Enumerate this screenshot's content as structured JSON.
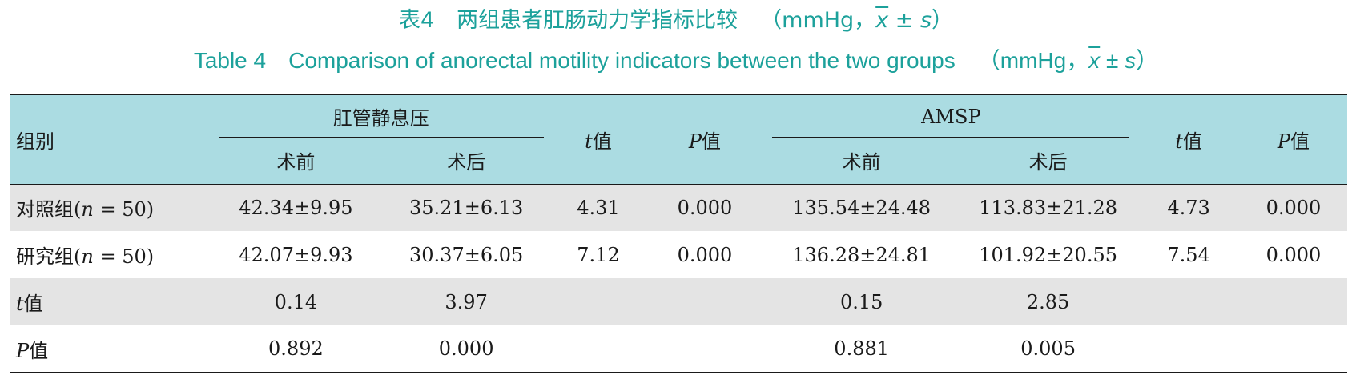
{
  "title": {
    "cn_label": "表4",
    "cn_text": "两组患者肛肠动力学指标比较",
    "en_label": "Table 4",
    "en_text": "Comparison of anorectal motility indicators between the two groups",
    "unit_open": "（mmHg，",
    "xbar": "x",
    "pm": " ± ",
    "s": "s",
    "unit_close": "）"
  },
  "table": {
    "group_header": "组别",
    "col_group_1": "肛管静息压",
    "col_group_2": "AMSP",
    "sub_before": "术前",
    "sub_after": "术后",
    "t_italic": "t",
    "p_italic": "P",
    "val_suffix": "值",
    "rows": [
      {
        "label_pre": "对照组(",
        "label_n": "n",
        "label_post": " = 50)",
        "c1": "42.34±9.95",
        "c2": "35.21±6.13",
        "c3": "4.31",
        "c4": "0.000",
        "c5": "135.54±24.48",
        "c6": "113.83±21.28",
        "c7": "4.73",
        "c8": "0.000"
      },
      {
        "label_pre": "研究组(",
        "label_n": "n",
        "label_post": " = 50)",
        "c1": "42.07±9.93",
        "c2": "30.37±6.05",
        "c3": "7.12",
        "c4": "0.000",
        "c5": "136.28±24.81",
        "c6": "101.92±20.55",
        "c7": "7.54",
        "c8": "0.000"
      },
      {
        "label_italic": "t",
        "label_suffix": "值",
        "c1": "0.14",
        "c2": "3.97",
        "c5": "0.15",
        "c6": "2.85"
      },
      {
        "label_italic": "P",
        "label_suffix": "值",
        "c1": "0.892",
        "c2": "0.000",
        "c5": "0.881",
        "c6": "0.005"
      }
    ]
  },
  "colors": {
    "title": "#1ca19b",
    "header_bg": "#abdce2",
    "alt_row_bg": "#e4e4e4"
  }
}
